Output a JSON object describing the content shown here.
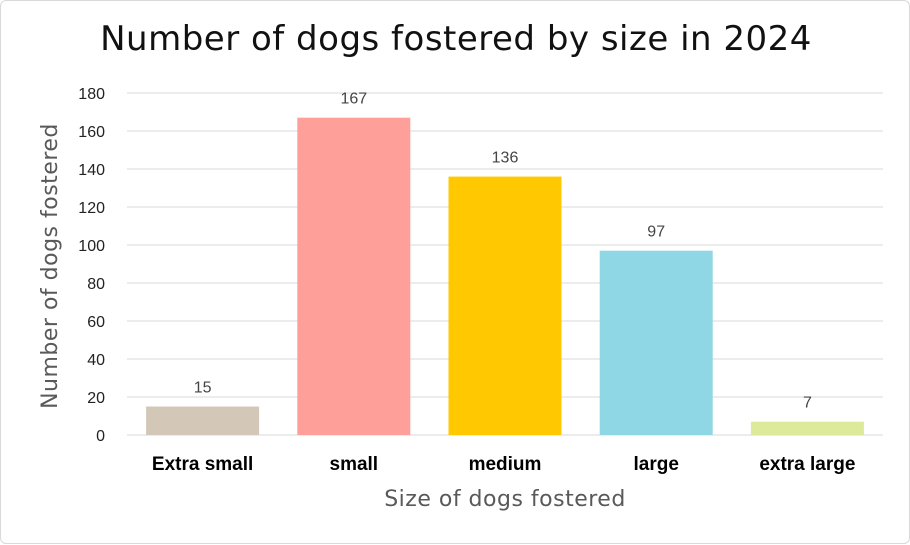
{
  "chart_data": {
    "type": "bar",
    "title": "Number of dogs fostered by size in 2024",
    "xlabel": "Size of dogs fostered",
    "ylabel": "Number of dogs fostered",
    "categories": [
      "Extra small",
      "small",
      "medium",
      "large",
      "extra large"
    ],
    "values": [
      15,
      167,
      136,
      97,
      7
    ],
    "colors": [
      "#d3c8b8",
      "#ff9f99",
      "#ffc800",
      "#8fd7e4",
      "#dcea9a"
    ],
    "ylim": [
      0,
      180
    ],
    "yticks": [
      "0",
      "20",
      "40",
      "60",
      "80",
      "100",
      "120",
      "140",
      "160",
      "180"
    ],
    "grid": true,
    "data_labels": true,
    "legend": "none"
  }
}
